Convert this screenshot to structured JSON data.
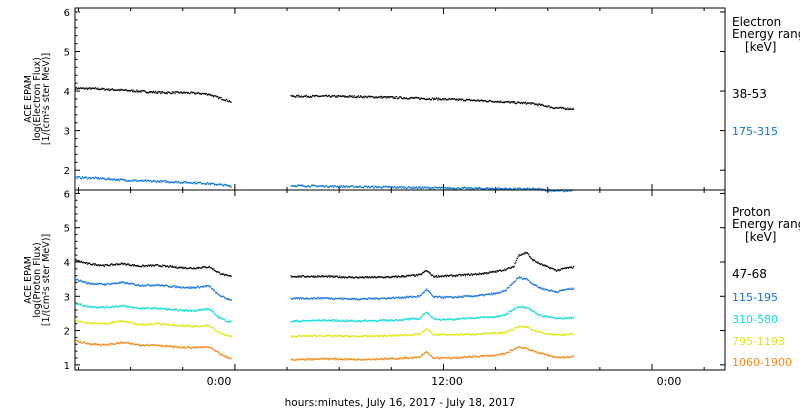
{
  "xlabel": "hours:minutes, July 16, 2017 - July 18, 2017",
  "x_tick_labels": [
    "0:00",
    "12:00",
    "0:00"
  ],
  "panels": [
    {
      "ylabel_lines": [
        "ACE EPAM",
        "log(Electron Flux)",
        "[1/(cm²s ster MeV)]"
      ],
      "legend_title": [
        "Electron",
        "Energy ranges"
      ],
      "legend_unit": "[keV]",
      "y_tick_labels": [
        "2",
        "3",
        "4",
        "5",
        "6"
      ]
    },
    {
      "ylabel_lines": [
        "ACE EPAM",
        "log(Proton Flux)",
        "[1/(cm²s ster MeV)]"
      ],
      "legend_title": [
        "Proton",
        "Energy ranges"
      ],
      "legend_unit": "[keV]",
      "y_tick_labels": [
        "1",
        "2",
        "3",
        "4",
        "5",
        "6"
      ]
    }
  ],
  "chart_data": [
    {
      "type": "scatter",
      "title": "",
      "ylabel": "ACE EPAM log(Electron Flux) [1/(cm²s ster MeV)]",
      "xlabel": "hours:minutes, July 16, 2017 - July 18, 2017",
      "xunit": "hours since 2017-07-16 00:00",
      "xlim": [
        14.8,
        52.2
      ],
      "ylim": [
        1.5,
        6.1
      ],
      "grid": false,
      "legend_position": "right",
      "series": [
        {
          "name": "38-53",
          "color": "#000000",
          "segments": [
            [
              [
                14.8,
                4.07
              ],
              [
                16,
                4.06
              ],
              [
                18,
                4.01
              ],
              [
                19,
                3.98
              ],
              [
                20,
                3.96
              ],
              [
                21,
                3.96
              ],
              [
                22,
                3.94
              ],
              [
                22.5,
                3.92
              ],
              [
                22.9,
                3.85
              ],
              [
                23.3,
                3.8
              ],
              [
                23.7,
                3.74
              ],
              [
                23.8,
                3.71
              ]
            ],
            [
              [
                27.2,
                3.87
              ],
              [
                29,
                3.87
              ],
              [
                31,
                3.86
              ],
              [
                33,
                3.84
              ],
              [
                35,
                3.81
              ],
              [
                37,
                3.78
              ],
              [
                39,
                3.74
              ],
              [
                40,
                3.71
              ],
              [
                41,
                3.69
              ],
              [
                41.8,
                3.63
              ],
              [
                42.3,
                3.58
              ],
              [
                43,
                3.56
              ],
              [
                43.5,
                3.55
              ]
            ]
          ]
        },
        {
          "name": "175-315",
          "color": "#0a74d6",
          "segments": [
            [
              [
                14.8,
                1.82
              ],
              [
                16,
                1.8
              ],
              [
                18,
                1.74
              ],
              [
                20,
                1.71
              ],
              [
                22,
                1.68
              ],
              [
                23,
                1.64
              ],
              [
                23.8,
                1.6
              ]
            ],
            [
              [
                27.2,
                1.61
              ],
              [
                30,
                1.59
              ],
              [
                33,
                1.57
              ],
              [
                36,
                1.55
              ],
              [
                38,
                1.54
              ],
              [
                40,
                1.53
              ],
              [
                41.5,
                1.52
              ],
              [
                42,
                1.49
              ],
              [
                43,
                1.48
              ],
              [
                43.5,
                1.49
              ]
            ]
          ]
        }
      ]
    },
    {
      "type": "scatter",
      "title": "",
      "ylabel": "ACE EPAM log(Proton Flux) [1/(cm²s ster MeV)]",
      "xlabel": "hours:minutes, July 16, 2017 - July 18, 2017",
      "xunit": "hours since 2017-07-16 00:00",
      "xlim": [
        14.8,
        52.2
      ],
      "ylim": [
        0.85,
        6.1
      ],
      "grid": false,
      "legend_position": "right",
      "series": [
        {
          "name": "47-68",
          "color": "#000000",
          "segments": [
            [
              [
                14.8,
                4.05
              ],
              [
                15.5,
                3.95
              ],
              [
                16.5,
                3.9
              ],
              [
                17.5,
                3.95
              ],
              [
                18.5,
                3.88
              ],
              [
                19.5,
                3.9
              ],
              [
                20.5,
                3.85
              ],
              [
                21.5,
                3.82
              ],
              [
                22.5,
                3.86
              ],
              [
                23,
                3.7
              ],
              [
                23.5,
                3.6
              ],
              [
                23.8,
                3.58
              ]
            ],
            [
              [
                27.2,
                3.58
              ],
              [
                29,
                3.58
              ],
              [
                31,
                3.55
              ],
              [
                33,
                3.56
              ],
              [
                34.6,
                3.62
              ],
              [
                35,
                3.75
              ],
              [
                35.4,
                3.58
              ],
              [
                36.5,
                3.6
              ],
              [
                38,
                3.65
              ],
              [
                39,
                3.72
              ],
              [
                39.5,
                3.78
              ],
              [
                40,
                3.85
              ],
              [
                40.3,
                4.2
              ],
              [
                40.8,
                4.28
              ],
              [
                41,
                4.1
              ],
              [
                41.5,
                3.95
              ],
              [
                42,
                3.85
              ],
              [
                42.5,
                3.75
              ],
              [
                43,
                3.82
              ],
              [
                43.5,
                3.85
              ]
            ]
          ]
        },
        {
          "name": "115-195",
          "color": "#1373d8",
          "segments": [
            [
              [
                14.8,
                3.5
              ],
              [
                15.5,
                3.38
              ],
              [
                16.5,
                3.35
              ],
              [
                17.5,
                3.4
              ],
              [
                18.5,
                3.32
              ],
              [
                19.5,
                3.33
              ],
              [
                20.5,
                3.28
              ],
              [
                21.5,
                3.25
              ],
              [
                22.5,
                3.3
              ],
              [
                23,
                3.05
              ],
              [
                23.5,
                2.93
              ],
              [
                23.8,
                2.9
              ]
            ],
            [
              [
                27.2,
                2.93
              ],
              [
                29,
                2.95
              ],
              [
                31,
                2.92
              ],
              [
                33,
                2.95
              ],
              [
                34.6,
                3.0
              ],
              [
                35,
                3.2
              ],
              [
                35.4,
                2.98
              ],
              [
                36.5,
                2.97
              ],
              [
                38,
                3.02
              ],
              [
                39,
                3.08
              ],
              [
                39.5,
                3.15
              ],
              [
                40,
                3.4
              ],
              [
                40.3,
                3.55
              ],
              [
                40.8,
                3.5
              ],
              [
                41,
                3.4
              ],
              [
                41.5,
                3.25
              ],
              [
                42,
                3.18
              ],
              [
                42.5,
                3.13
              ],
              [
                43,
                3.2
              ],
              [
                43.5,
                3.22
              ]
            ]
          ]
        },
        {
          "name": "310-580",
          "color": "#12dcd4",
          "segments": [
            [
              [
                14.8,
                2.8
              ],
              [
                15.5,
                2.7
              ],
              [
                16.5,
                2.68
              ],
              [
                17.5,
                2.72
              ],
              [
                18.5,
                2.65
              ],
              [
                19.5,
                2.65
              ],
              [
                20.5,
                2.6
              ],
              [
                21.5,
                2.58
              ],
              [
                22.5,
                2.63
              ],
              [
                23,
                2.4
              ],
              [
                23.5,
                2.28
              ],
              [
                23.8,
                2.25
              ]
            ],
            [
              [
                27.2,
                2.27
              ],
              [
                29,
                2.3
              ],
              [
                31,
                2.28
              ],
              [
                33,
                2.3
              ],
              [
                34.6,
                2.35
              ],
              [
                35,
                2.55
              ],
              [
                35.4,
                2.33
              ],
              [
                36.5,
                2.33
              ],
              [
                38,
                2.38
              ],
              [
                39,
                2.4
              ],
              [
                39.5,
                2.45
              ],
              [
                40,
                2.62
              ],
              [
                40.3,
                2.7
              ],
              [
                40.8,
                2.68
              ],
              [
                41,
                2.6
              ],
              [
                41.5,
                2.45
              ],
              [
                42,
                2.4
              ],
              [
                42.5,
                2.35
              ],
              [
                43,
                2.36
              ],
              [
                43.5,
                2.38
              ]
            ]
          ]
        },
        {
          "name": "795-1193",
          "color": "#e0e615",
          "segments": [
            [
              [
                14.8,
                2.3
              ],
              [
                15.5,
                2.22
              ],
              [
                16.5,
                2.2
              ],
              [
                17.5,
                2.28
              ],
              [
                18.5,
                2.18
              ],
              [
                19.5,
                2.2
              ],
              [
                20.5,
                2.15
              ],
              [
                21.5,
                2.12
              ],
              [
                22.5,
                2.15
              ],
              [
                23,
                1.95
              ],
              [
                23.5,
                1.85
              ],
              [
                23.8,
                1.82
              ]
            ],
            [
              [
                27.2,
                1.83
              ],
              [
                29,
                1.85
              ],
              [
                31,
                1.83
              ],
              [
                33,
                1.85
              ],
              [
                34.6,
                1.9
              ],
              [
                35,
                2.05
              ],
              [
                35.4,
                1.88
              ],
              [
                36.5,
                1.88
              ],
              [
                38,
                1.9
              ],
              [
                39,
                1.92
              ],
              [
                39.5,
                1.95
              ],
              [
                40,
                2.05
              ],
              [
                40.3,
                2.12
              ],
              [
                40.8,
                2.1
              ],
              [
                41,
                2.05
              ],
              [
                41.5,
                1.95
              ],
              [
                42,
                1.9
              ],
              [
                42.5,
                1.88
              ],
              [
                43,
                1.88
              ],
              [
                43.5,
                1.9
              ]
            ]
          ]
        },
        {
          "name": "1060-1900",
          "color": "#ee8a17",
          "segments": [
            [
              [
                14.8,
                1.7
              ],
              [
                15.5,
                1.62
              ],
              [
                16.5,
                1.58
              ],
              [
                17.5,
                1.65
              ],
              [
                18.5,
                1.58
              ],
              [
                19.5,
                1.58
              ],
              [
                20.5,
                1.52
              ],
              [
                21.5,
                1.5
              ],
              [
                22.5,
                1.52
              ],
              [
                23,
                1.35
              ],
              [
                23.5,
                1.22
              ],
              [
                23.8,
                1.18
              ]
            ],
            [
              [
                27.2,
                1.15
              ],
              [
                29,
                1.18
              ],
              [
                31,
                1.16
              ],
              [
                33,
                1.18
              ],
              [
                34.6,
                1.22
              ],
              [
                35,
                1.38
              ],
              [
                35.4,
                1.2
              ],
              [
                36.5,
                1.2
              ],
              [
                38,
                1.25
              ],
              [
                39,
                1.28
              ],
              [
                39.5,
                1.32
              ],
              [
                40,
                1.45
              ],
              [
                40.3,
                1.52
              ],
              [
                40.8,
                1.48
              ],
              [
                41,
                1.42
              ],
              [
                41.5,
                1.35
              ],
              [
                42,
                1.28
              ],
              [
                42.5,
                1.22
              ],
              [
                43,
                1.22
              ],
              [
                43.5,
                1.25
              ]
            ]
          ]
        }
      ]
    }
  ]
}
